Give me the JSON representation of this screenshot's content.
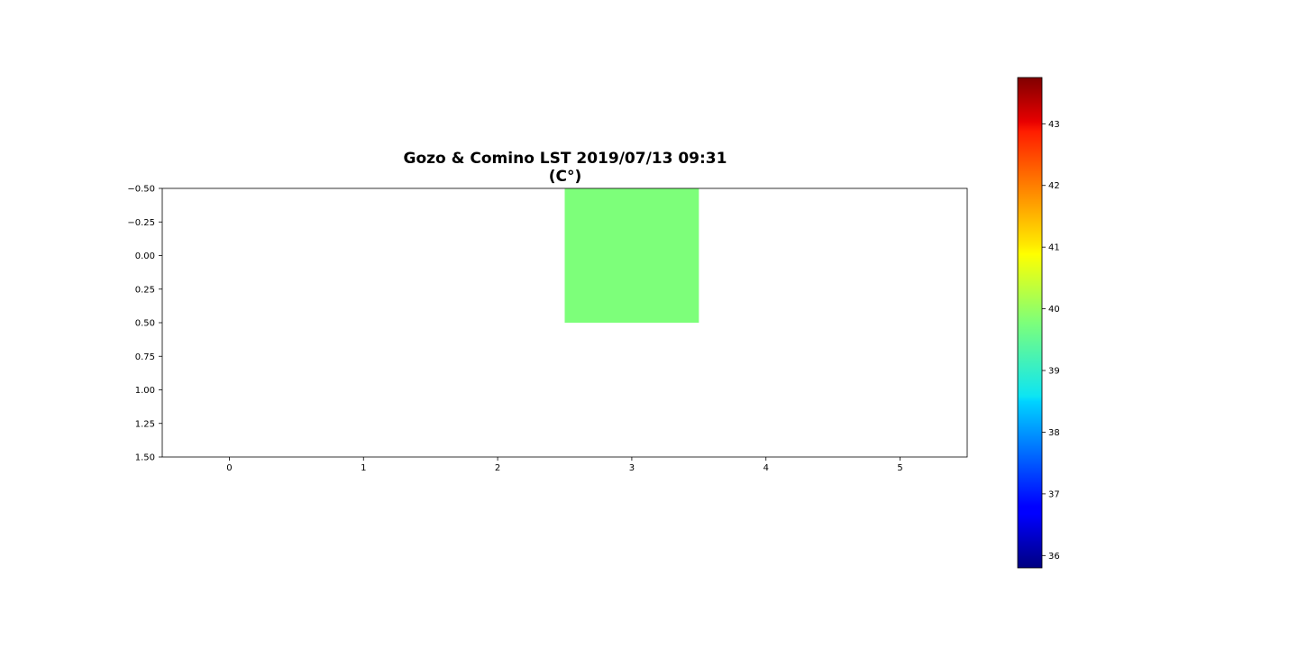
{
  "chart_data": {
    "type": "heatmap",
    "title_line1": "Gozo & Comino LST 2019/07/13 09:31",
    "title_line2": "(C°)",
    "x_ticks": [
      "0",
      "1",
      "2",
      "3",
      "4",
      "5"
    ],
    "y_ticks": [
      "−0.50",
      "−0.25",
      "0.00",
      "0.25",
      "0.50",
      "0.75",
      "1.00",
      "1.25",
      "1.50"
    ],
    "xlim": [
      -0.5,
      5.5
    ],
    "ylim": [
      1.5,
      -0.5
    ],
    "y_inverted": true,
    "rows": 2,
    "cols": 6,
    "cells": [
      {
        "row": 0,
        "col": 3,
        "value": 39.9,
        "color": "#7dff7a"
      }
    ],
    "colorbar": {
      "colormap": "jet",
      "vmin": 35.8,
      "vmax": 43.75,
      "ticks": [
        "36",
        "37",
        "38",
        "39",
        "40",
        "41",
        "42",
        "43"
      ]
    }
  }
}
